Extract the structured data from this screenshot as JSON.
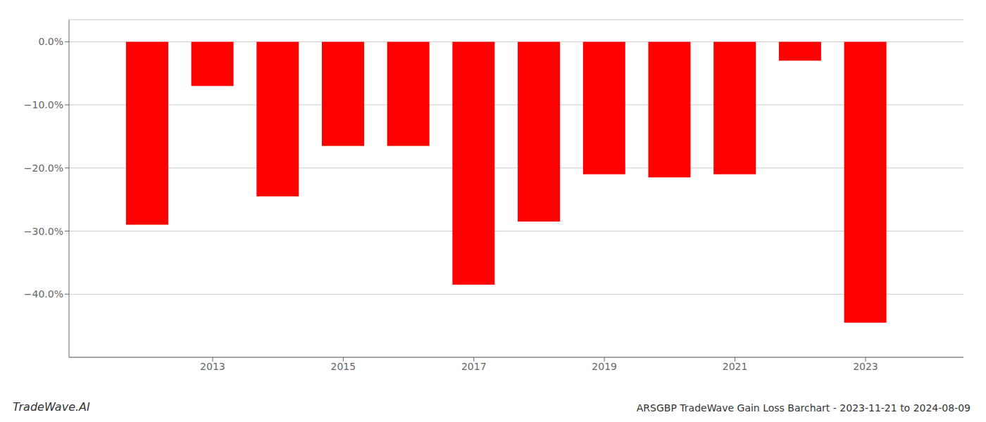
{
  "chart_data": {
    "type": "bar",
    "title": "ARSGBP TradeWave Gain Loss Barchart - 2023-11-21 to 2024-08-09",
    "annotations": [
      "TradeWave.AI"
    ],
    "x": [
      2012,
      2013,
      2014,
      2015,
      2016,
      2017,
      2018,
      2019,
      2020,
      2021,
      2022,
      2023
    ],
    "values": [
      -29.0,
      -7.0,
      -24.5,
      -16.5,
      -16.5,
      -38.5,
      -28.5,
      -21.0,
      -21.5,
      -21.0,
      -3.0,
      -44.5
    ],
    "color": "#ff0000",
    "xlim": [
      2010.8,
      2024.5
    ],
    "xticks": [
      2013,
      2015,
      2017,
      2019,
      2021,
      2023
    ],
    "ylim": [
      -50,
      3.5
    ],
    "yticks": [
      {
        "value": 0.0,
        "label": "0.0%"
      },
      {
        "value": -10.0,
        "label": "−10.0%"
      },
      {
        "value": -20.0,
        "label": "−20.0%"
      },
      {
        "value": -30.0,
        "label": "−30.0%"
      },
      {
        "value": -40.0,
        "label": "−40.0%"
      }
    ],
    "grid": true
  }
}
